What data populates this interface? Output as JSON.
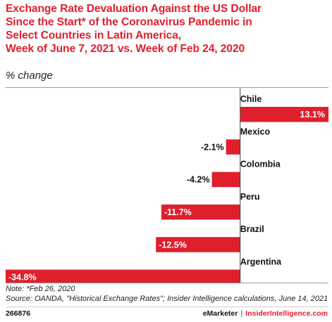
{
  "header": {
    "title_lines": [
      "Exchange Rate Devaluation Against the US Dollar",
      "Since the Start* of the Coronavirus Pandemic in",
      "Select Countries in Latin America,",
      "Week of June 7, 2021 vs. Week of Feb 24, 2020"
    ],
    "subtitle": "% change"
  },
  "chart_data": {
    "type": "bar",
    "orientation": "horizontal",
    "categories": [
      "Chile",
      "Mexico",
      "Colombia",
      "Peru",
      "Brazil",
      "Argentina"
    ],
    "values": [
      13.1,
      -2.1,
      -4.2,
      -11.7,
      -12.5,
      -34.8
    ],
    "data_labels": [
      "13.1%",
      "-2.1%",
      "-4.2%",
      "-11.7%",
      "-12.5%",
      "-34.8%"
    ],
    "xlim": [
      -34.8,
      13.1
    ],
    "bar_color": "#e01f2d",
    "grid": false
  },
  "footer": {
    "note": "Note: *Feb 26, 2020",
    "source": "Source: OANDA, \"Historical Exchange Rates\"; Insider Intelligence calculations, June 14, 2021",
    "chart_id": "266876",
    "brand_left": "eMarketer",
    "brand_sep": "|",
    "brand_right": "InsiderIntelligence.com"
  }
}
